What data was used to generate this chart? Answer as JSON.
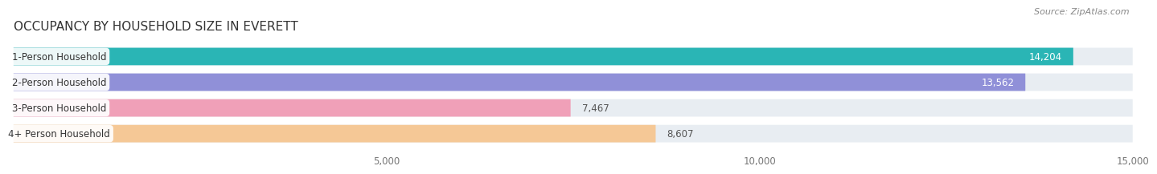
{
  "title": "OCCUPANCY BY HOUSEHOLD SIZE IN EVERETT",
  "source": "Source: ZipAtlas.com",
  "categories": [
    "1-Person Household",
    "2-Person Household",
    "3-Person Household",
    "4+ Person Household"
  ],
  "values": [
    14204,
    13562,
    7467,
    8607
  ],
  "bar_colors": [
    "#2ab5b5",
    "#9090d8",
    "#f0a0b8",
    "#f5c896"
  ],
  "label_colors": [
    "#ffffff",
    "#ffffff",
    "#555555",
    "#555555"
  ],
  "xlim": [
    0,
    15000
  ],
  "xticks": [
    5000,
    10000,
    15000
  ],
  "xtick_labels": [
    "5,000",
    "10,000",
    "15,000"
  ],
  "background_color": "#ffffff",
  "bar_background_color": "#e8edf2",
  "title_fontsize": 11,
  "source_fontsize": 8,
  "label_fontsize": 8.5,
  "value_fontsize": 8.5,
  "tick_fontsize": 8.5
}
